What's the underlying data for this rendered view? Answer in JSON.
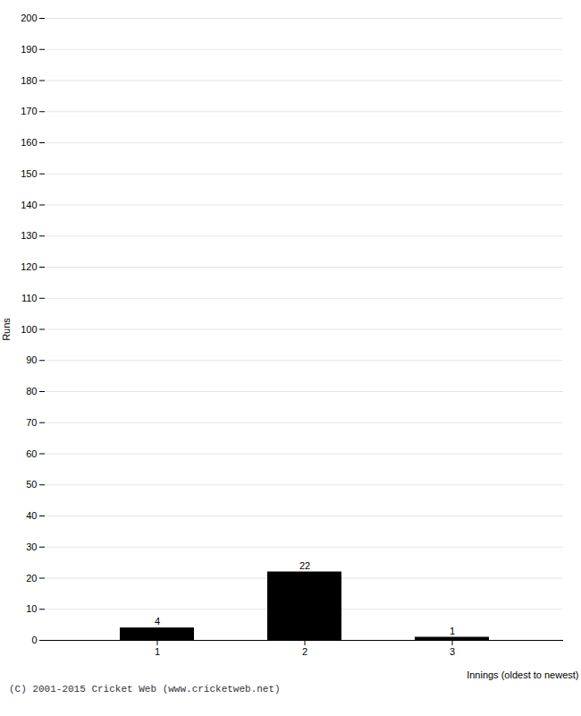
{
  "chart_data": {
    "type": "bar",
    "categories": [
      1,
      2,
      3
    ],
    "values": [
      4,
      22,
      1
    ],
    "xlabel": "Innings (oldest to newest)",
    "ylabel": "Runs",
    "ylim": [
      0,
      200
    ],
    "yticks": [
      0,
      10,
      20,
      30,
      40,
      50,
      60,
      70,
      80,
      90,
      100,
      110,
      120,
      130,
      140,
      150,
      160,
      170,
      180,
      190,
      200
    ],
    "grid": true,
    "data_labels": true,
    "caption": "(C) 2001-2015 Cricket Web (www.cricketweb.net)"
  }
}
